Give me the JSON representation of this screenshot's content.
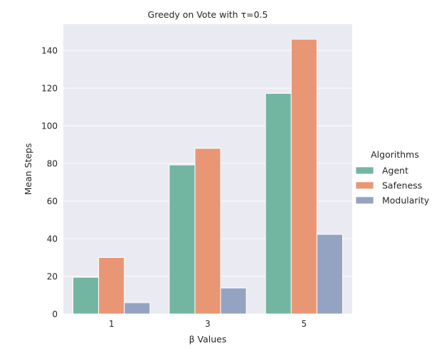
{
  "chart_data": {
    "type": "bar",
    "title": "Greedy on Vote with τ=0.5",
    "xlabel": "β Values",
    "ylabel": "Mean Steps",
    "categories": [
      "1",
      "3",
      "5"
    ],
    "ylim": [
      0,
      154
    ],
    "yticks": [
      0,
      20,
      40,
      60,
      80,
      100,
      120,
      140
    ],
    "grid": true,
    "legend_position": "right",
    "legend_title": "Algorithms",
    "series": [
      {
        "name": "Agent",
        "color": "#72b6a1",
        "values": [
          19.5,
          79.2,
          117.2
        ]
      },
      {
        "name": "Safeness",
        "color": "#e99675",
        "values": [
          30,
          88,
          146
        ]
      },
      {
        "name": "Modularity",
        "color": "#95a3c3",
        "values": [
          6,
          13.8,
          42.3
        ]
      }
    ]
  }
}
